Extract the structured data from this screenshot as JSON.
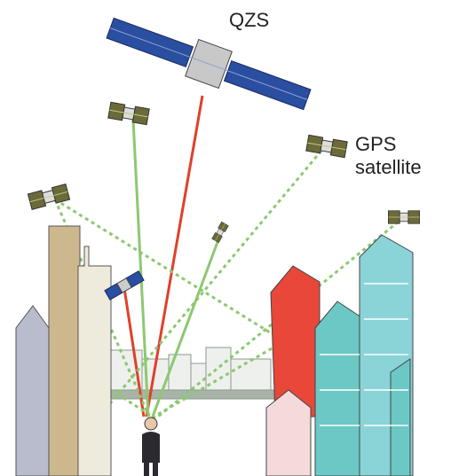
{
  "labels": {
    "qzs": "QZS",
    "gps_line1": "GPS",
    "gps_line2": "satellite"
  }
}
